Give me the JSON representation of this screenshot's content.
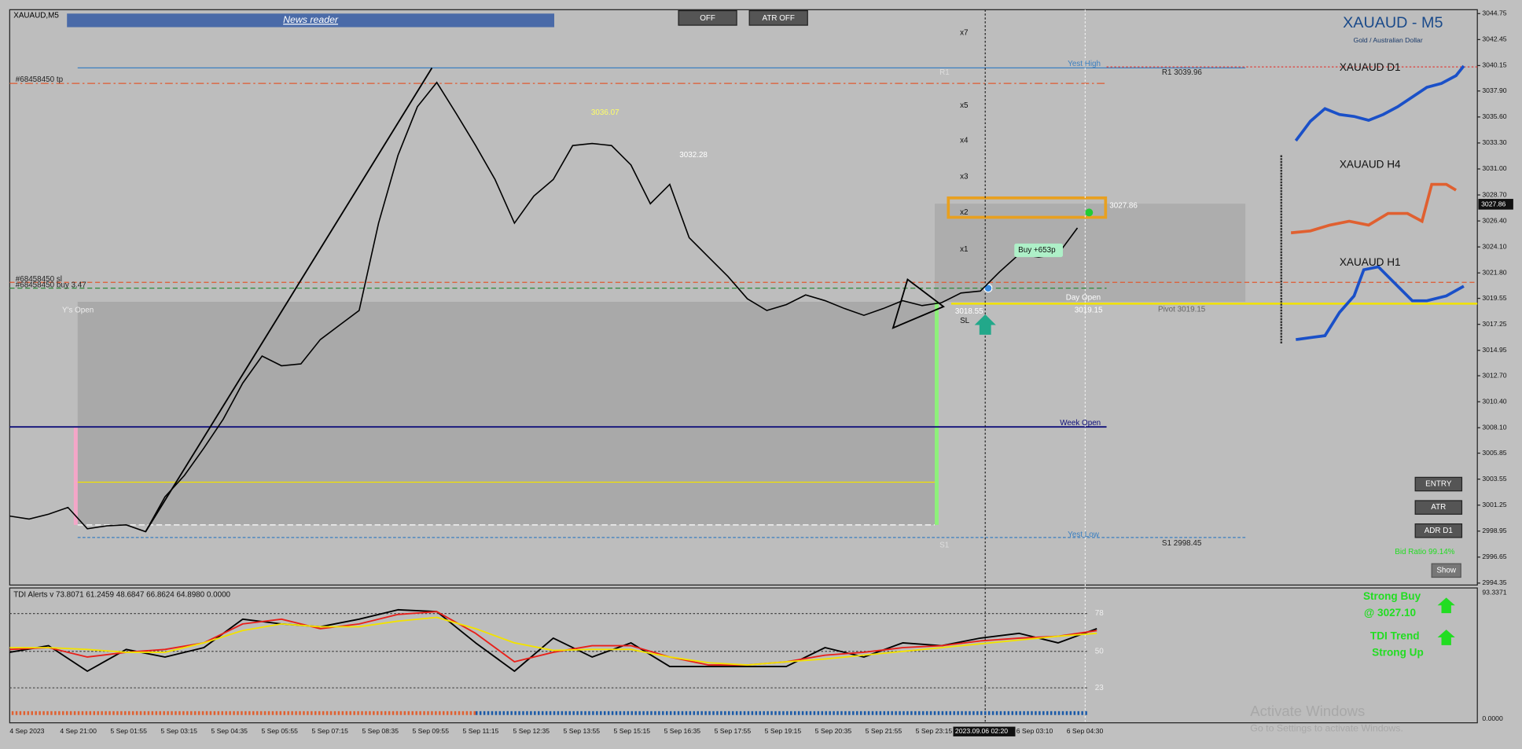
{
  "window": {
    "symbol": "XAUAUD,M5",
    "news_reader": "News reader",
    "buttons": [
      "OFF",
      "ATR OFF"
    ],
    "title": "XAUAUD - M5",
    "subtitle": "Gold / Australian Dollar"
  },
  "price_axis": {
    "ylim": [
      2994.35,
      3044.75
    ],
    "ticks": [
      3044.75,
      3042.45,
      3040.15,
      {
        "value": 3037.9,
        "label": "3037.90"
      },
      {
        "value": 3035.6,
        "label": "3035.60"
      },
      {
        "value": 3033.3,
        "label": "3033.30"
      },
      {
        "value": 3031,
        "label": "3031.00"
      },
      {
        "value": 3028.7,
        "label": "3028.70"
      },
      {
        "value": 3026.4,
        "label": "3026.40"
      },
      {
        "value": 3024.1,
        "label": "3024.10"
      },
      {
        "value": 3021.8,
        "label": "3021.80"
      },
      3019.55,
      3017.25,
      3014.95,
      {
        "value": 3012.7,
        "label": "3012.70"
      },
      {
        "value": 3010.4,
        "label": "3010.40"
      },
      {
        "value": 3008.1,
        "label": "3008.10"
      },
      3005.85,
      3003.55,
      3001.25,
      2998.95,
      2996.65,
      2994.35
    ],
    "current": "3027.86"
  },
  "price_path": [
    3000.28,
    3000.02,
    3000.45,
    3001.05,
    2999.16,
    2999.42,
    2999.5,
    2998.9,
    3001.99,
    3003.88,
    3006.29,
    3008.86,
    3012.04,
    3014.44,
    3013.58,
    3013.75,
    3015.9,
    3017.19,
    3018.48,
    3026.2,
    3032.21,
    3036.51,
    3038.65,
    3035.91,
    3033.07,
    3030.07,
    3026.2,
    3028.61,
    3030.07,
    3033.07,
    3033.25,
    3033.07,
    3031.36,
    3027.92,
    3029.64,
    3024.92,
    3023.2,
    3021.48,
    3019.51,
    3018.48,
    3018.99,
    3019.85,
    3019.34,
    3018.65,
    3018.05,
    3018.65,
    3019.34,
    3018.91,
    3019.16,
    3020.02,
    3020.19,
    3021.91,
    3023.46,
    3023.2,
    3023.46,
    3025.78
  ],
  "annotations": {
    "tp": "#68458450 tp",
    "sl": "#68458450 sl",
    "buy": "#68458450 buy 3.47",
    "ys_open": "Y's Open",
    "yest_high": "Yest High",
    "yest_low": "Yest Low",
    "r1_label": "R1",
    "s1_label": "S1",
    "r1": "R1 3039.96",
    "s1": "S1 2998.45",
    "pivot": "Pivot 3019.15",
    "week_open": "Week Open",
    "day_open": "Day Open",
    "day_open_price": "3019.15",
    "entry_price": "3018.55",
    "high_label": "3036.07",
    "mid_label": "3032.28",
    "box_label": "3027.86",
    "buy_label": "Buy +653p",
    "x7": "x7",
    "x5": "x5",
    "x4": "x4",
    "x3": "x3",
    "x2": "x2",
    "x1": "x1",
    "sl_mark": "SL"
  },
  "panel": {
    "d1": "XAUAUD D1",
    "h4": "XAUAUD H4",
    "h1": "XAUAUD H1",
    "buttons": [
      "ENTRY",
      "ATR",
      "ADR D1"
    ],
    "bid_ratio": "Bid Ratio 99.14%",
    "show": "Show"
  },
  "tdi": {
    "header": "TDI Alerts v 73.8071 61.2459 48.6847 66.8624 64.8980 0.0000",
    "ylim": [
      0,
      93.3371
    ],
    "top": "93.3371",
    "bottom": "0.0000",
    "levels": [
      78,
      50,
      23
    ],
    "lines": [
      {
        "color": "#000000",
        "values": [
          49.3,
          54.2,
          35.3,
          51.4,
          45.8,
          52.8,
          73.8,
          70.3,
          68.2,
          73.8,
          80.8,
          79.4,
          56.3,
          35.3,
          59.8,
          45.8,
          56.3,
          38.8,
          38.8,
          38.8,
          38.8,
          52.8,
          45.8,
          56.3,
          54.2,
          59.8,
          63.3,
          56.3,
          66.8
        ]
      },
      {
        "color": "#e8201a",
        "values": [
          51.4,
          52.8,
          45.8,
          49.3,
          51.4,
          56.3,
          70.3,
          73.8,
          66.8,
          70.3,
          77.3,
          79.4,
          63.3,
          42.3,
          49.3,
          54.2,
          54.2,
          45.8,
          39.9,
          39.9,
          42.3,
          47.2,
          49.3,
          52.8,
          54.2,
          57.7,
          59.8,
          61.2,
          65.4
        ]
      },
      {
        "color": "#f2e200",
        "values": [
          52.8,
          52.8,
          51.4,
          49.3,
          49.3,
          56.3,
          65.4,
          70.3,
          68.2,
          68.2,
          72.4,
          75.2,
          66.8,
          56.3,
          50.7,
          51.4,
          51.4,
          45.8,
          41.6,
          39.9,
          42.3,
          44.4,
          47.2,
          50,
          52.8,
          55.6,
          58.4,
          61.2,
          63.3
        ]
      }
    ],
    "signals": {
      "strong_buy": "Strong Buy",
      "price": "@ 3027.10",
      "trend": "TDI Trend",
      "strong_up": "Strong Up"
    }
  },
  "time_axis": {
    "labels": [
      "4 Sep 2023",
      "4 Sep 21:00",
      "5 Sep 01:55",
      "5 Sep 03:15",
      "5 Sep 04:35",
      "5 Sep 05:55",
      "5 Sep 07:15",
      "5 Sep 08:35",
      "5 Sep 09:55",
      "5 Sep 11:15",
      "5 Sep 12:35",
      "5 Sep 13:55",
      "5 Sep 15:15",
      "5 Sep 16:35",
      "5 Sep 17:55",
      "5 Sep 19:15",
      "5 Sep 20:35",
      "5 Sep 21:55",
      "5 Sep 23:15",
      "6 Sep 03:10",
      "6 Sep 04:30"
    ],
    "cursor": "2023.09.06 02:20"
  },
  "watermark": {
    "title": "Activate Windows",
    "text": "Go to Settings to activate Windows."
  }
}
